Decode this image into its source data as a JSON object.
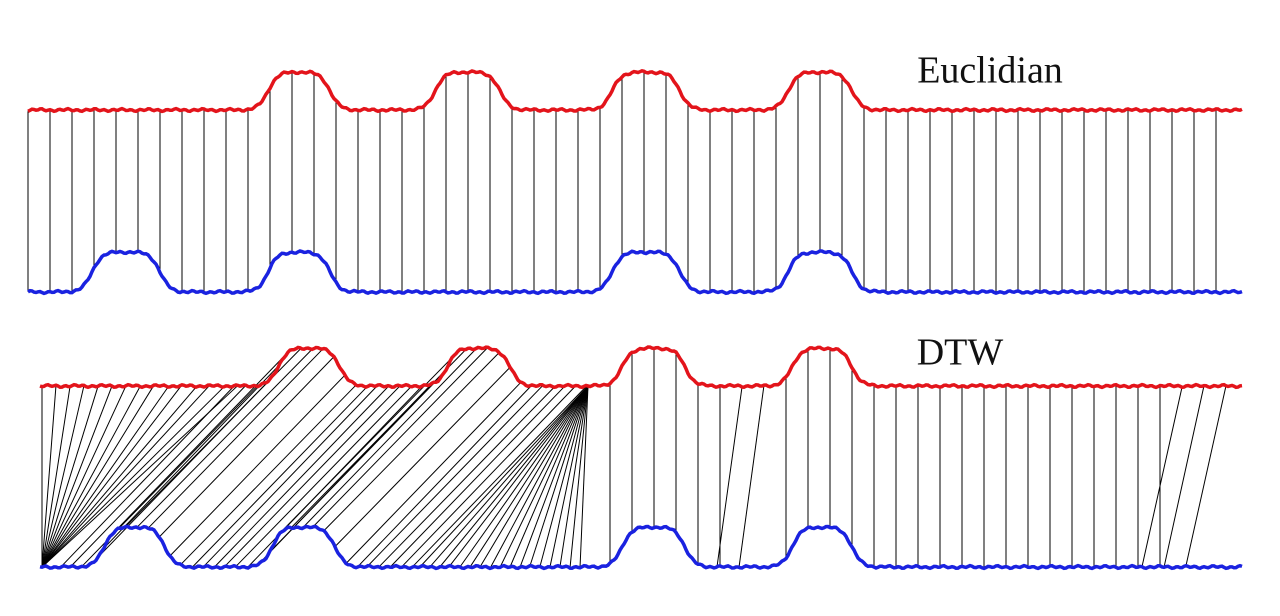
{
  "panels": [
    {
      "label": "Euclidian"
    },
    {
      "label": "DTW"
    }
  ]
}
